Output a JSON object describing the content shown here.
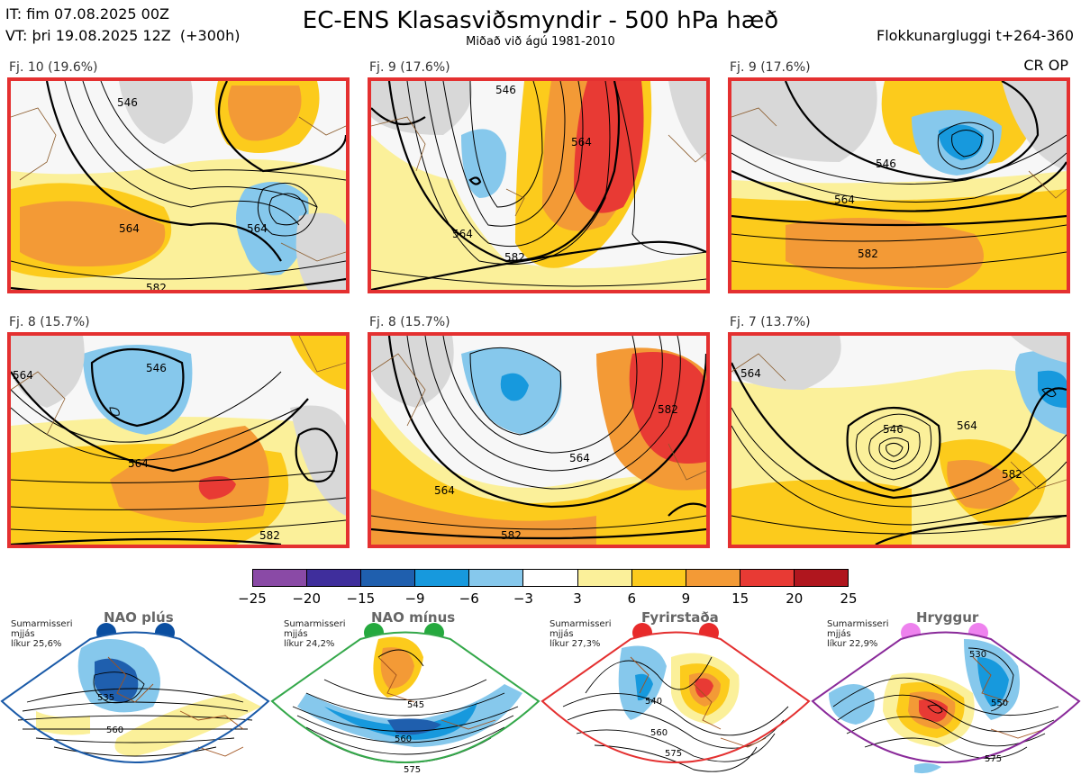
{
  "header": {
    "line1": "IT: fim 07.08.2025 00Z",
    "line2": "VT: þri 19.08.2025 12Z  (+300h)",
    "title": "EC-ENS Klasasviðsmyndir - 500 hPa hæð",
    "subtitle": "Miðað við ágú 1981-2010",
    "window": "Flokkunargluggi t+264-360",
    "crop": "CR OP"
  },
  "panels": [
    {
      "label": "Fj. 10 (19.6%)",
      "contours": [
        "546",
        "564",
        "564",
        "582"
      ]
    },
    {
      "label": "Fj. 9 (17.6%)",
      "contours": [
        "546",
        "564",
        "564",
        "582"
      ]
    },
    {
      "label": "Fj. 9 (17.6%)",
      "contours": [
        "546",
        "564",
        "582"
      ]
    },
    {
      "label": "Fj. 8 (15.7%)",
      "contours": [
        "546",
        "564",
        "564",
        "582"
      ]
    },
    {
      "label": "Fj. 8 (15.7%)",
      "contours": [
        "564",
        "564",
        "582",
        "582"
      ]
    },
    {
      "label": "Fj. 7 (13.7%)",
      "contours": [
        "564",
        "546",
        "564",
        "582"
      ]
    }
  ],
  "colorbar": {
    "colors": [
      "#8a4aa6",
      "#3f2e9c",
      "#1f5fae",
      "#1799dd",
      "#86c8ec",
      "#ffffff",
      "#fbf09a",
      "#fccb1c",
      "#f39a36",
      "#e83a34",
      "#b0161e"
    ],
    "ticks": [
      "−25",
      "−20",
      "−15",
      "−9",
      "−6",
      "−3",
      "3",
      "6",
      "9",
      "15",
      "20",
      "25"
    ]
  },
  "regimes": [
    {
      "title": "NAO plús",
      "info": "Sumarmisseri\nmjjás\nlíkur 25,6%",
      "dot_color": "#0a4ea0",
      "border": "#1a5aa8",
      "labels": [
        "535",
        "560"
      ]
    },
    {
      "title": "NAO mínus",
      "info": "Sumarmisseri\nmjjás\nlíkur 24,2%",
      "dot_color": "#25a93e",
      "border": "#34a84a",
      "labels": [
        "545",
        "560",
        "575"
      ]
    },
    {
      "title": "Fyrirstaða",
      "info": "Sumarmisseri\nmjjás\nlíkur 27,3%",
      "dot_color": "#e82a2a",
      "border": "#e43030",
      "labels": [
        "540",
        "560",
        "575"
      ]
    },
    {
      "title": "Hryggur",
      "info": "Sumarmisseri\nmjjás\nlíkur 22,9%",
      "dot_color": "#ee82ee",
      "border": "#8a2a9a",
      "labels": [
        "530",
        "550",
        "575"
      ]
    }
  ],
  "colors": {
    "frame_red": "#e43030",
    "land_gray": "#d8d8d8",
    "coast": "#8a5a2a"
  }
}
